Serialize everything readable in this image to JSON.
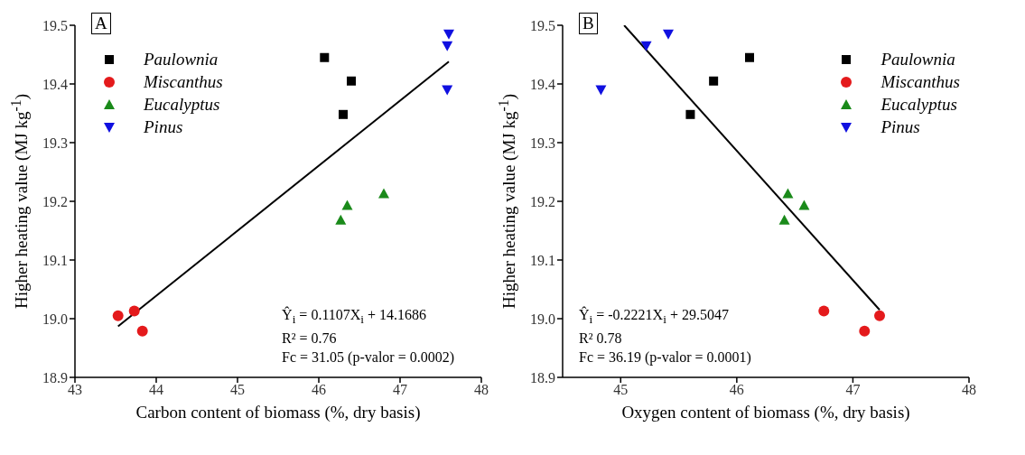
{
  "chart_data": [
    {
      "type": "scatter",
      "title": "A",
      "xlabel": "Carbon content of biomass (%, dry basis)",
      "ylabel": "Higher heating value (MJ kg$^{-1}$)",
      "xlim": [
        43,
        48
      ],
      "xticks": [
        43,
        44,
        45,
        46,
        47,
        48
      ],
      "ylim": [
        18.9,
        19.5
      ],
      "yticks": [
        18.9,
        {
          "value": 19.0,
          "label": "19.0"
        },
        19.1,
        19.2,
        19.3,
        19.4,
        19.5
      ],
      "legend": "top left",
      "series": [
        {
          "name": "Paulownia",
          "color": "#000000",
          "marker": "square",
          "x": [
            46.07,
            46.4,
            46.3
          ],
          "values": [
            19.445,
            19.405,
            19.348
          ]
        },
        {
          "name": "Miscanthus",
          "color": "#e41a1c",
          "marker": "circle",
          "x": [
            43.53,
            43.73,
            43.83
          ],
          "values": [
            19.005,
            19.013,
            18.979
          ]
        },
        {
          "name": "Eucalyptus",
          "color": "#1a8a1a",
          "marker": "triangle",
          "x": [
            46.27,
            46.35,
            46.8
          ],
          "values": [
            19.168,
            19.193,
            19.213
          ]
        },
        {
          "name": "Pinus",
          "color": "#1010e0",
          "marker": "triangle-down",
          "x": [
            47.6,
            47.58,
            47.58
          ],
          "values": [
            19.485,
            19.465,
            19.39
          ]
        },
        {
          "type": "line",
          "color": "#000000",
          "x": [
            43.53,
            47.6
          ],
          "values": [
            18.987,
            19.438
          ]
        }
      ],
      "annotations": [
        "Ŷ$_{i}$ = 0.1107X$_{i}$ + 14.1686",
        "R² = 0.76",
        "Fc = 31.05 (p-valor = 0.0002)"
      ]
    },
    {
      "type": "scatter",
      "title": "B",
      "xlabel": "Oxygen content of biomass (%, dry basis)",
      "ylabel": "Higher heating value (MJ kg$^{-1}$)",
      "xlim": [
        44.5,
        48
      ],
      "xticks": [
        45,
        46,
        47,
        48
      ],
      "ylim": [
        18.9,
        19.5
      ],
      "yticks": [
        18.9,
        {
          "value": 19.0,
          "label": "19.0"
        },
        19.1,
        19.2,
        19.3,
        19.4,
        19.5
      ],
      "legend": "top right",
      "series": [
        {
          "name": "Paulownia",
          "color": "#000000",
          "marker": "square",
          "x": [
            45.6,
            45.8,
            46.11
          ],
          "values": [
            19.348,
            19.405,
            19.445
          ]
        },
        {
          "name": "Miscanthus",
          "color": "#e41a1c",
          "marker": "circle",
          "x": [
            46.75,
            47.1,
            47.23
          ],
          "values": [
            19.013,
            18.979,
            19.005
          ]
        },
        {
          "name": "Eucalyptus",
          "color": "#1a8a1a",
          "marker": "triangle",
          "x": [
            46.41,
            46.44,
            46.58
          ],
          "values": [
            19.168,
            19.213,
            19.193
          ]
        },
        {
          "name": "Pinus",
          "color": "#1010e0",
          "marker": "triangle-down",
          "x": [
            44.83,
            45.22,
            45.41
          ],
          "values": [
            19.39,
            19.465,
            19.485
          ]
        },
        {
          "type": "line",
          "color": "#000000",
          "x": [
            45.03,
            47.23
          ],
          "values": [
            19.5,
            19.015
          ]
        }
      ],
      "annotations": [
        "Ŷ$_{i}$ = -0.2221X$_{i}$ + 29.5047",
        "R² 0.78",
        "Fc = 36.19 (p-valor = 0.0001)"
      ]
    }
  ]
}
